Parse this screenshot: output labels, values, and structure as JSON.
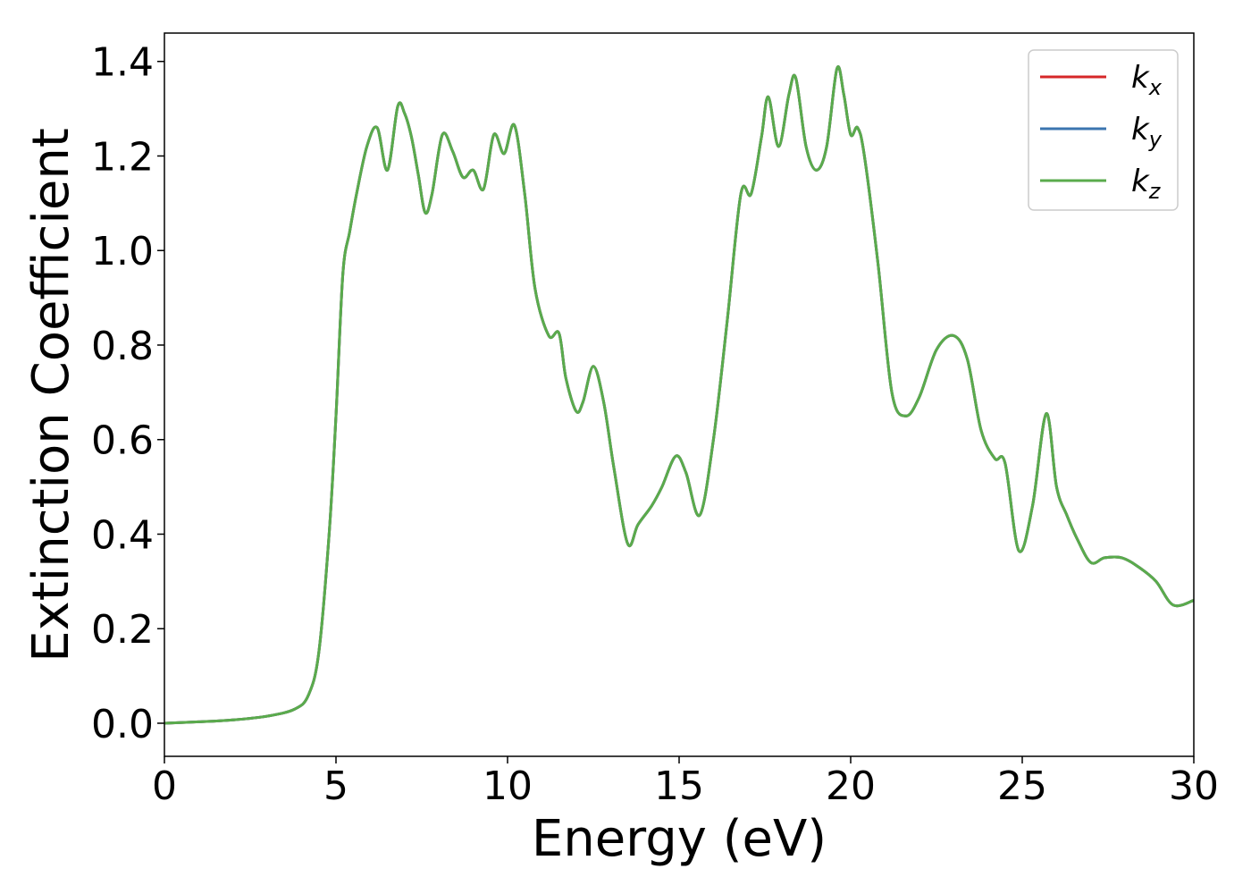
{
  "chart_data": {
    "type": "line",
    "xlabel": "Energy (eV)",
    "ylabel": "Extinction Coefficient",
    "xlim": [
      0,
      30
    ],
    "ylim": [
      -0.07,
      1.46
    ],
    "xticks": [
      0,
      5,
      10,
      15,
      20,
      25,
      30
    ],
    "xtick_labels": [
      "0",
      "5",
      "10",
      "15",
      "20",
      "25",
      "30"
    ],
    "yticks": [
      0.0,
      0.2,
      0.4,
      0.6,
      0.8,
      1.0,
      1.2,
      1.4
    ],
    "ytick_labels": [
      "0.0",
      "0.2",
      "0.4",
      "0.6",
      "0.8",
      "1.0",
      "1.2",
      "1.4"
    ],
    "grid": false,
    "legend_position": "top-right",
    "series": [
      {
        "name": "k_x",
        "legend_base": "k",
        "legend_sub": "x",
        "color": "#d62728",
        "x": [
          0,
          1,
          2,
          3,
          3.8,
          4.2,
          4.5,
          4.8,
          5.0,
          5.2,
          5.4,
          5.6,
          5.9,
          6.2,
          6.5,
          6.8,
          7.0,
          7.2,
          7.4,
          7.6,
          7.8,
          8.1,
          8.4,
          8.7,
          9.0,
          9.3,
          9.6,
          9.9,
          10.2,
          10.5,
          10.8,
          11.2,
          11.5,
          11.7,
          12.0,
          12.2,
          12.5,
          12.8,
          13.1,
          13.5,
          13.8,
          14.2,
          14.5,
          14.9,
          15.2,
          15.6,
          16.0,
          16.4,
          16.8,
          17.1,
          17.4,
          17.6,
          17.9,
          18.2,
          18.4,
          18.7,
          19.0,
          19.3,
          19.6,
          19.8,
          20.0,
          20.2,
          20.4,
          20.8,
          21.2,
          21.6,
          22.0,
          22.5,
          23.0,
          23.4,
          23.8,
          24.2,
          24.5,
          24.9,
          25.3,
          25.7,
          26.0,
          26.3,
          26.6,
          27.0,
          27.4,
          27.9,
          28.4,
          28.9,
          29.4,
          30.0
        ],
        "y": [
          0.0,
          0.003,
          0.007,
          0.015,
          0.03,
          0.06,
          0.15,
          0.4,
          0.65,
          0.95,
          1.04,
          1.12,
          1.22,
          1.26,
          1.17,
          1.305,
          1.29,
          1.24,
          1.16,
          1.08,
          1.12,
          1.245,
          1.21,
          1.155,
          1.17,
          1.13,
          1.245,
          1.205,
          1.265,
          1.12,
          0.92,
          0.82,
          0.825,
          0.73,
          0.66,
          0.68,
          0.755,
          0.68,
          0.54,
          0.38,
          0.42,
          0.46,
          0.5,
          0.565,
          0.53,
          0.44,
          0.6,
          0.85,
          1.12,
          1.12,
          1.24,
          1.325,
          1.22,
          1.33,
          1.365,
          1.22,
          1.17,
          1.22,
          1.385,
          1.33,
          1.245,
          1.26,
          1.2,
          0.97,
          0.7,
          0.65,
          0.69,
          0.79,
          0.82,
          0.77,
          0.62,
          0.56,
          0.55,
          0.365,
          0.46,
          0.655,
          0.5,
          0.44,
          0.39,
          0.34,
          0.35,
          0.35,
          0.33,
          0.3,
          0.25,
          0.26
        ]
      },
      {
        "name": "k_y",
        "legend_base": "k",
        "legend_sub": "y",
        "color": "#3b75af",
        "x": [
          0,
          1,
          2,
          3,
          3.8,
          4.2,
          4.5,
          4.8,
          5.0,
          5.2,
          5.4,
          5.6,
          5.9,
          6.2,
          6.5,
          6.8,
          7.0,
          7.2,
          7.4,
          7.6,
          7.8,
          8.1,
          8.4,
          8.7,
          9.0,
          9.3,
          9.6,
          9.9,
          10.2,
          10.5,
          10.8,
          11.2,
          11.5,
          11.7,
          12.0,
          12.2,
          12.5,
          12.8,
          13.1,
          13.5,
          13.8,
          14.2,
          14.5,
          14.9,
          15.2,
          15.6,
          16.0,
          16.4,
          16.8,
          17.1,
          17.4,
          17.6,
          17.9,
          18.2,
          18.4,
          18.7,
          19.0,
          19.3,
          19.6,
          19.8,
          20.0,
          20.2,
          20.4,
          20.8,
          21.2,
          21.6,
          22.0,
          22.5,
          23.0,
          23.4,
          23.8,
          24.2,
          24.5,
          24.9,
          25.3,
          25.7,
          26.0,
          26.3,
          26.6,
          27.0,
          27.4,
          27.9,
          28.4,
          28.9,
          29.4,
          30.0
        ],
        "y": [
          0.0,
          0.003,
          0.007,
          0.015,
          0.03,
          0.06,
          0.15,
          0.4,
          0.65,
          0.95,
          1.04,
          1.12,
          1.22,
          1.26,
          1.17,
          1.305,
          1.29,
          1.24,
          1.16,
          1.08,
          1.12,
          1.245,
          1.21,
          1.155,
          1.17,
          1.13,
          1.245,
          1.205,
          1.265,
          1.12,
          0.92,
          0.82,
          0.825,
          0.73,
          0.66,
          0.68,
          0.755,
          0.68,
          0.54,
          0.38,
          0.42,
          0.46,
          0.5,
          0.565,
          0.53,
          0.44,
          0.6,
          0.85,
          1.12,
          1.12,
          1.24,
          1.325,
          1.22,
          1.33,
          1.365,
          1.22,
          1.17,
          1.22,
          1.385,
          1.33,
          1.245,
          1.26,
          1.2,
          0.97,
          0.7,
          0.65,
          0.69,
          0.79,
          0.82,
          0.77,
          0.62,
          0.56,
          0.55,
          0.365,
          0.46,
          0.655,
          0.5,
          0.44,
          0.39,
          0.34,
          0.35,
          0.35,
          0.33,
          0.3,
          0.25,
          0.26
        ]
      },
      {
        "name": "k_z",
        "legend_base": "k",
        "legend_sub": "z",
        "color": "#5aab4c",
        "x": [
          0,
          1,
          2,
          3,
          3.8,
          4.2,
          4.5,
          4.8,
          5.0,
          5.2,
          5.4,
          5.6,
          5.9,
          6.2,
          6.5,
          6.8,
          7.0,
          7.2,
          7.4,
          7.6,
          7.8,
          8.1,
          8.4,
          8.7,
          9.0,
          9.3,
          9.6,
          9.9,
          10.2,
          10.5,
          10.8,
          11.2,
          11.5,
          11.7,
          12.0,
          12.2,
          12.5,
          12.8,
          13.1,
          13.5,
          13.8,
          14.2,
          14.5,
          14.9,
          15.2,
          15.6,
          16.0,
          16.4,
          16.8,
          17.1,
          17.4,
          17.6,
          17.9,
          18.2,
          18.4,
          18.7,
          19.0,
          19.3,
          19.6,
          19.8,
          20.0,
          20.2,
          20.4,
          20.8,
          21.2,
          21.6,
          22.0,
          22.5,
          23.0,
          23.4,
          23.8,
          24.2,
          24.5,
          24.9,
          25.3,
          25.7,
          26.0,
          26.3,
          26.6,
          27.0,
          27.4,
          27.9,
          28.4,
          28.9,
          29.4,
          30.0
        ],
        "y": [
          0.0,
          0.003,
          0.007,
          0.015,
          0.03,
          0.06,
          0.15,
          0.4,
          0.65,
          0.95,
          1.04,
          1.12,
          1.22,
          1.26,
          1.17,
          1.305,
          1.29,
          1.24,
          1.16,
          1.08,
          1.12,
          1.245,
          1.21,
          1.155,
          1.17,
          1.13,
          1.245,
          1.205,
          1.265,
          1.12,
          0.92,
          0.82,
          0.825,
          0.73,
          0.66,
          0.68,
          0.755,
          0.68,
          0.54,
          0.38,
          0.42,
          0.46,
          0.5,
          0.565,
          0.53,
          0.44,
          0.6,
          0.85,
          1.12,
          1.12,
          1.24,
          1.325,
          1.22,
          1.33,
          1.365,
          1.22,
          1.17,
          1.22,
          1.385,
          1.33,
          1.245,
          1.26,
          1.2,
          0.97,
          0.7,
          0.65,
          0.69,
          0.79,
          0.82,
          0.77,
          0.62,
          0.56,
          0.55,
          0.365,
          0.46,
          0.655,
          0.5,
          0.44,
          0.39,
          0.34,
          0.35,
          0.35,
          0.33,
          0.3,
          0.25,
          0.26
        ]
      }
    ]
  }
}
